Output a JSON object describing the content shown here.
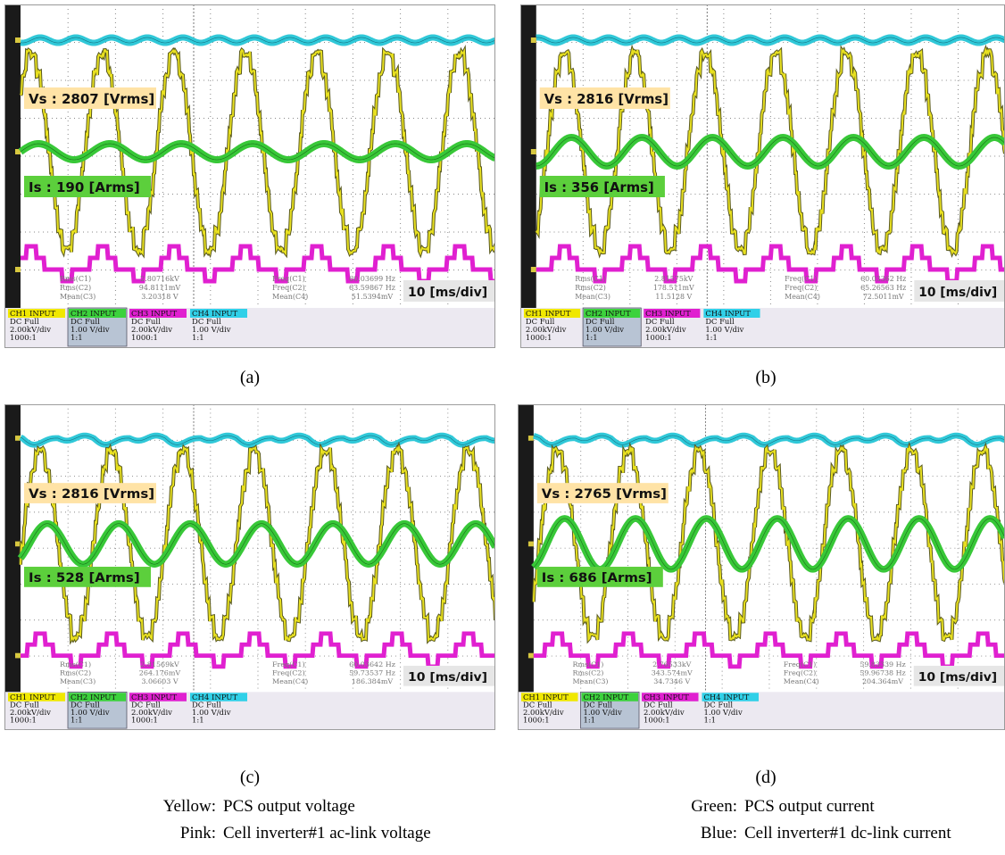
{
  "panels": [
    {
      "vs_label": "Vs : 2807 [Vrms]",
      "is_label": "Is : 190 [Arms]",
      "timebase": "10 [ms/div]",
      "caption": "(a)",
      "measurements": [
        [
          "Rms(C1)",
          "2.80716kV"
        ],
        [
          "Rms(C2)",
          "94.8111mV"
        ],
        [
          "Mean(C3)",
          "3.20318 V"
        ],
        [
          "Freq(C1)",
          "60.03699 Hz"
        ],
        [
          "Freq(C2)",
          "63.59867 Hz"
        ],
        [
          "Mean(C4)",
          "51.5394mV"
        ]
      ],
      "channels": [
        [
          "CH1 INPUT",
          "DC Full",
          "2.00kV/div",
          "1000:1"
        ],
        [
          "CH2 INPUT",
          "DC Full",
          "1.00 V/div",
          "1:1"
        ],
        [
          "CH3 INPUT",
          "DC Full",
          "2.00kV/div",
          "1000:1"
        ],
        [
          "CH4 INPUT",
          "DC Full",
          "1.00 V/div",
          "1:1"
        ]
      ]
    },
    {
      "vs_label": "Vs : 2816 [Vrms]",
      "is_label": "Is : 356 [Arms]",
      "timebase": "10 [ms/div]",
      "caption": "(b)",
      "measurements": [
        [
          "Rms(C1)",
          "2.81575kV"
        ],
        [
          "Rms(C2)",
          "178.511mV"
        ],
        [
          "Mean(C3)",
          "11.5128 V"
        ],
        [
          "Freq(C1)",
          "60.03362 Hz"
        ],
        [
          "Freq(C2)",
          "65.26563 Hz"
        ],
        [
          "Mean(C4)",
          "72.5011mV"
        ]
      ],
      "channels": [
        [
          "CH1 INPUT",
          "DC Full",
          "2.00kV/div",
          "1000:1"
        ],
        [
          "CH2 INPUT",
          "DC Full",
          "1.00 V/div",
          "1:1"
        ],
        [
          "CH3 INPUT",
          "DC Full",
          "2.00kV/div",
          "1000:1"
        ],
        [
          "CH4 INPUT",
          "DC Full",
          "1.00 V/div",
          "1:1"
        ]
      ]
    },
    {
      "vs_label": "Vs : 2816 [Vrms]",
      "is_label": "Is : 528 [Arms]",
      "timebase": "10 [ms/div]",
      "caption": "(c)",
      "measurements": [
        [
          "Rms(C1)",
          "2.81569kV"
        ],
        [
          "Rms(C2)",
          "264.176mV"
        ],
        [
          "Mean(C3)",
          "3.06603 V"
        ],
        [
          "Freq(C1)",
          "60.03642 Hz"
        ],
        [
          "Freq(C2)",
          "59.73537 Hz"
        ],
        [
          "Mean(C4)",
          "186.384mV"
        ]
      ],
      "channels": [
        [
          "CH1 INPUT",
          "DC Full",
          "2.00kV/div",
          "1000:1"
        ],
        [
          "CH2 INPUT",
          "DC Full",
          "1.00 V/div",
          "1:1"
        ],
        [
          "CH3 INPUT",
          "DC Full",
          "2.00kV/div",
          "1000:1"
        ],
        [
          "CH4 INPUT",
          "DC Full",
          "1.00 V/div",
          "1:1"
        ]
      ]
    },
    {
      "vs_label": "Vs : 2765 [Vrms]",
      "is_label": "Is : 686 [Arms]",
      "timebase": "10 [ms/div]",
      "caption": "(d)",
      "measurements": [
        [
          "Rms(C1)",
          "2.76533kV"
        ],
        [
          "Rms(C2)",
          "343.574mV"
        ],
        [
          "Mean(C3)",
          "34.7346 V"
        ],
        [
          "Freq(C1)",
          "59.83339 Hz"
        ],
        [
          "Freq(C2)",
          "59.96738 Hz"
        ],
        [
          "Mean(C4)",
          "204.364mV"
        ]
      ],
      "channels": [
        [
          "CH1 INPUT",
          "DC Full",
          "2.00kV/div",
          "1000:1"
        ],
        [
          "CH2 INPUT",
          "DC Full",
          "1.00 V/div",
          "1:1"
        ],
        [
          "CH3 INPUT",
          "DC Full",
          "2.00kV/div",
          "1000:1"
        ],
        [
          "CH4 INPUT",
          "DC Full",
          "1.00 V/div",
          "1:1"
        ]
      ]
    }
  ],
  "legend": [
    [
      "Yellow:",
      "PCS output voltage"
    ],
    [
      "Green:",
      "PCS output current"
    ],
    [
      "Pink:",
      "Cell inverter#1 ac-link voltage"
    ],
    [
      "Blue:",
      "Cell inverter#1 dc-link current"
    ]
  ]
}
